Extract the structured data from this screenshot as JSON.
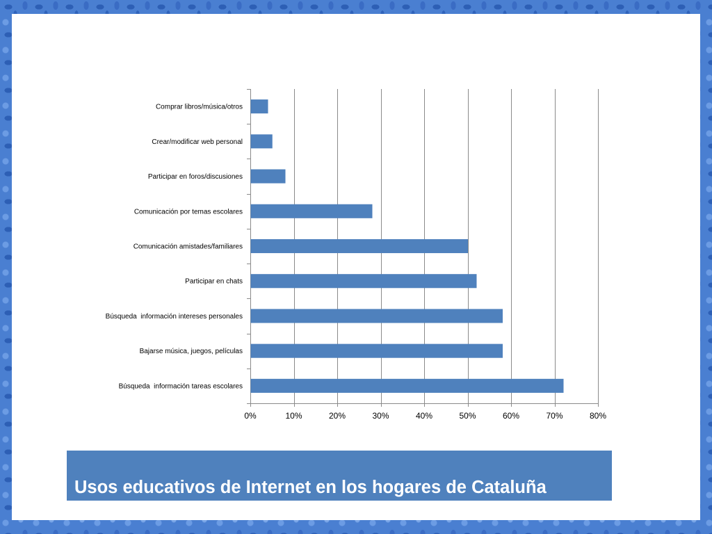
{
  "slide": {
    "title": "Usos educativos de Internet en los hogares de Cataluña"
  },
  "colors": {
    "border": "#4a7fd1",
    "panel": "#ffffff",
    "bar": "#4f81bd",
    "banner": "#4f81bd",
    "banner_text": "#ffffff",
    "gridline": "#8a8a8a"
  },
  "chart_data": {
    "type": "bar",
    "orientation": "horizontal",
    "categories": [
      "Comprar libros/música/otros",
      "Crear/modificar web personal",
      "Participar en foros/discusiones",
      "Comunicación por temas escolares",
      "Comunicación amistades/familiares",
      "Participar en chats",
      "Búsqueda  información intereses personales",
      "Bajarse música, juegos, películas",
      "Búsqueda  información tareas escolares"
    ],
    "values": [
      4,
      5,
      8,
      28,
      50,
      52,
      58,
      58,
      72
    ],
    "xlim": [
      0,
      80
    ],
    "x_ticks": [
      0,
      10,
      20,
      30,
      40,
      50,
      60,
      70,
      80
    ],
    "x_tick_labels": [
      "0%",
      "10%",
      "20%",
      "30%",
      "40%",
      "50%",
      "60%",
      "70%",
      "80%"
    ],
    "grid": true,
    "legend": "none"
  }
}
